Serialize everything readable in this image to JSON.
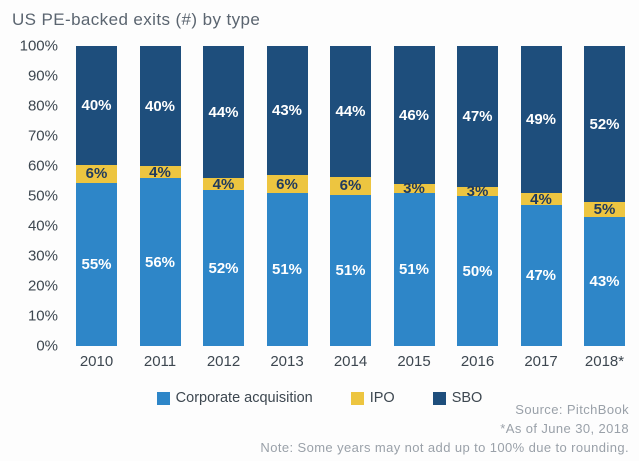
{
  "title": "US PE-backed exits (#) by type",
  "chart_data": {
    "type": "bar",
    "stacked": true,
    "title": "US PE-backed exits (#) by type",
    "categories": [
      "2010",
      "2011",
      "2012",
      "2013",
      "2014",
      "2015",
      "2016",
      "2017",
      "2018*"
    ],
    "series": [
      {
        "key": "corporate",
        "name": "Corporate acquisition",
        "color": "#2e86c8",
        "label_color": "#ffffff",
        "values": [
          55,
          56,
          52,
          51,
          51,
          51,
          50,
          47,
          43
        ]
      },
      {
        "key": "ipo",
        "name": "IPO",
        "color": "#edc540",
        "label_color": "#1f3a5e",
        "values": [
          6,
          4,
          4,
          6,
          6,
          3,
          3,
          4,
          5
        ]
      },
      {
        "key": "sbo",
        "name": "SBO",
        "color": "#1e4e7c",
        "label_color": "#ffffff",
        "values": [
          40,
          40,
          44,
          43,
          44,
          46,
          47,
          49,
          52
        ]
      }
    ],
    "y_ticks": [
      "100%",
      "90%",
      "80%",
      "70%",
      "60%",
      "50%",
      "40%",
      "30%",
      "20%",
      "10%",
      "0%"
    ],
    "ylim": [
      0,
      100
    ],
    "grid": false,
    "legend_position": "bottom",
    "value_suffix": "%"
  },
  "footer": {
    "source": "Source: PitchBook",
    "asof": "*As of June 30, 2018",
    "note": "Note: Some years may not add up to 100% due to rounding."
  },
  "colors": {
    "corporate_blue": "#2e86c8",
    "ipo_yellow": "#edc540",
    "sbo_navy": "#1e4e7c",
    "title_text": "#5b6570",
    "axis_text": "#3d4750",
    "footnote_text": "#9aa1a9"
  }
}
